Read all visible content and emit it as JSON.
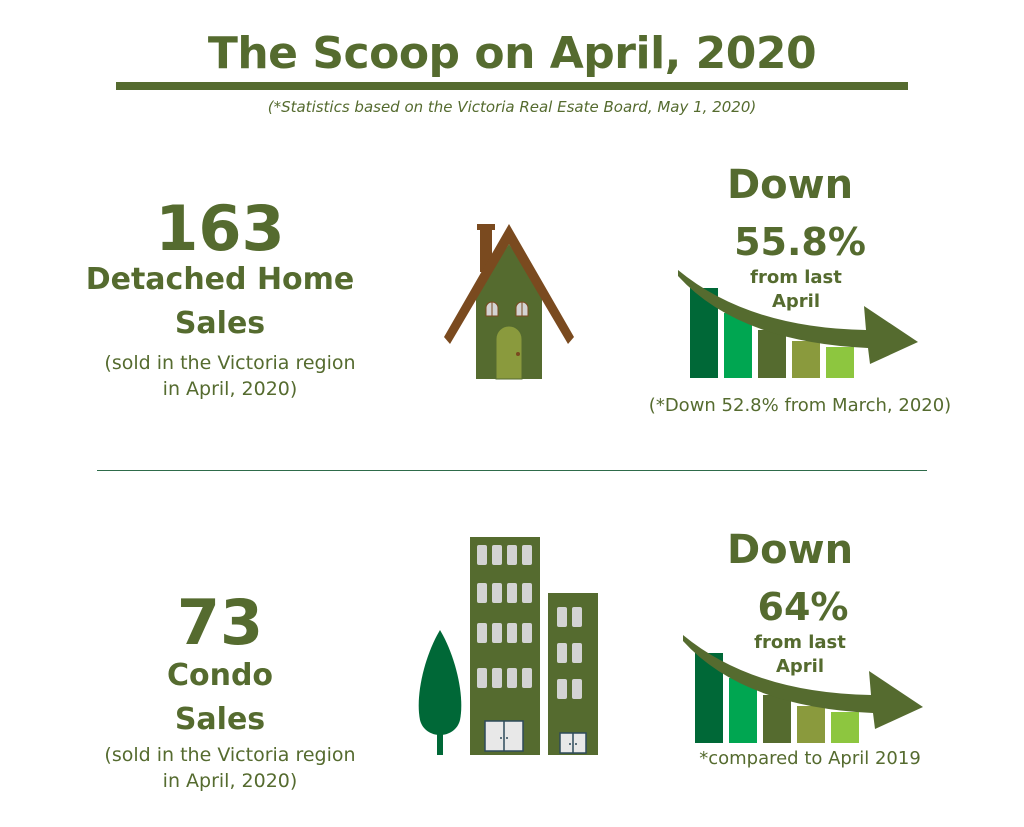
{
  "header": {
    "title": "The Scoop on April, 2020",
    "subtitle": "(*Statistics based on the Victoria Real Esate Board, May 1, 2020)"
  },
  "detached": {
    "count": "163",
    "label_line1": "Detached Home",
    "label_line2": "Sales",
    "note_line1": "(sold in the Victoria region",
    "note_line2": "in April, 2020)",
    "down_word": "Down",
    "down_pct": "55.8%",
    "down_sub1": "from last",
    "down_sub2": "April",
    "footnote": "(*Down 52.8% from March, 2020)",
    "icon": "house-icon"
  },
  "condo": {
    "count": "73",
    "label_line1": "Condo",
    "label_line2": "Sales",
    "note_line1": "(sold in the Victoria region",
    "note_line2": "in April, 2020)",
    "down_word": "Down",
    "down_pct": "64%",
    "down_sub1": "from last",
    "down_sub2": "April",
    "footnote": "*compared to April 2019",
    "icon": "condo-buildings-icon"
  },
  "colors": {
    "primary": "#556b2f",
    "bar1": "#006837",
    "bar2": "#00a651",
    "bar3": "#556b2f",
    "bar4": "#8a9a3d",
    "bar5": "#8dc63f",
    "house_roof": "#7a4a1f",
    "house_body": "#556b2f",
    "house_door": "#8a9a3d",
    "window": "#d3d3d3",
    "tree": "#006837"
  }
}
